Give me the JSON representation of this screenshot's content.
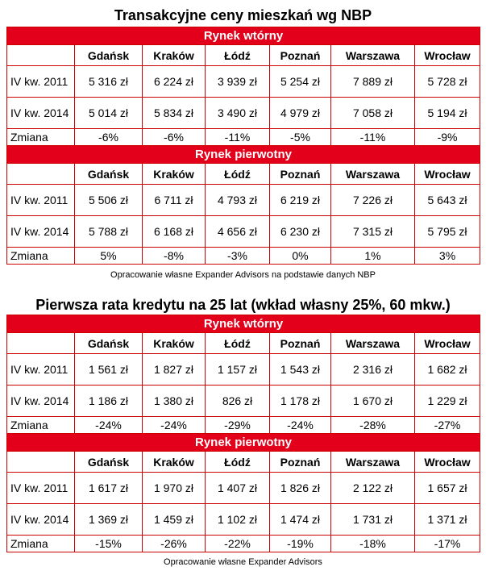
{
  "table1": {
    "title": "Transakcyjne ceny mieszkań wg NBP",
    "source": "Opracowanie własne Expander Advisors na podstawie danych NBP",
    "cities": [
      "Gdańsk",
      "Kraków",
      "Łódź",
      "Poznań",
      "Warszawa",
      "Wrocław"
    ],
    "sections": [
      {
        "name": "Rynek wtórny",
        "rows": [
          {
            "label": "IV kw. 2011",
            "values": [
              "5 316 zł",
              "6 224 zł",
              "3 939 zł",
              "5 254 zł",
              "7 889 zł",
              "5 728 zł"
            ]
          },
          {
            "label": "IV kw. 2014",
            "values": [
              "5 014 zł",
              "5 834 zł",
              "3 490 zł",
              "4 979 zł",
              "7 058 zł",
              "5 194 zł"
            ]
          }
        ],
        "change_label": "Zmiana",
        "change": [
          "-6%",
          "-6%",
          "-11%",
          "-5%",
          "-11%",
          "-9%"
        ]
      },
      {
        "name": "Rynek pierwotny",
        "rows": [
          {
            "label": "IV kw. 2011",
            "values": [
              "5 506 zł",
              "6 711 zł",
              "4 793 zł",
              "6 219 zł",
              "7 226 zł",
              "5 643 zł"
            ]
          },
          {
            "label": "IV kw. 2014",
            "values": [
              "5 788 zł",
              "6 168 zł",
              "4 656 zł",
              "6 230 zł",
              "7 315 zł",
              "5 795 zł"
            ]
          }
        ],
        "change_label": "Zmiana",
        "change": [
          "5%",
          "-8%",
          "-3%",
          "0%",
          "1%",
          "3%"
        ]
      }
    ]
  },
  "table2": {
    "title": "Pierwsza rata kredytu na 25 lat (wkład własny 25%, 60 mkw.)",
    "source": "Opracowanie własne Expander Advisors",
    "cities": [
      "Gdańsk",
      "Kraków",
      "Łódź",
      "Poznań",
      "Warszawa",
      "Wrocław"
    ],
    "sections": [
      {
        "name": "Rynek wtórny",
        "rows": [
          {
            "label": "IV kw. 2011",
            "values": [
              "1 561 zł",
              "1 827 zł",
              "1 157 zł",
              "1 543 zł",
              "2 316 zł",
              "1 682 zł"
            ]
          },
          {
            "label": "IV kw. 2014",
            "values": [
              "1 186 zł",
              "1 380 zł",
              "826 zł",
              "1 178 zł",
              "1 670 zł",
              "1 229 zł"
            ]
          }
        ],
        "change_label": "Zmiana",
        "change": [
          "-24%",
          "-24%",
          "-29%",
          "-24%",
          "-28%",
          "-27%"
        ]
      },
      {
        "name": "Rynek pierwotny",
        "rows": [
          {
            "label": "IV kw. 2011",
            "values": [
              "1 617 zł",
              "1 970 zł",
              "1 407 zł",
              "1 826 zł",
              "2 122 zł",
              "1 657 zł"
            ]
          },
          {
            "label": "IV kw. 2014",
            "values": [
              "1 369 zł",
              "1 459 zł",
              "1 102 zł",
              "1 474 zł",
              "1 731 zł",
              "1 371 zł"
            ]
          }
        ],
        "change_label": "Zmiana",
        "change": [
          "-15%",
          "-26%",
          "-22%",
          "-19%",
          "-18%",
          "-17%"
        ]
      }
    ]
  }
}
